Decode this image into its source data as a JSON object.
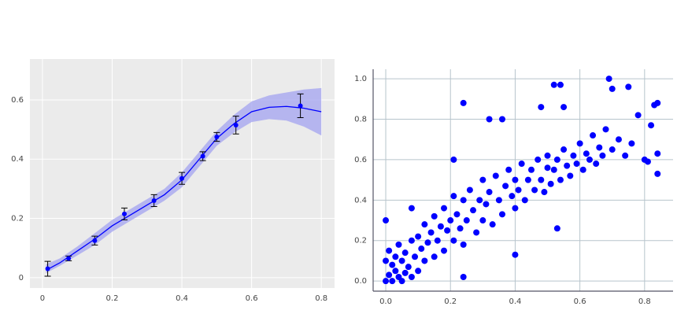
{
  "chart_data": [
    {
      "type": "errorbar",
      "x": [
        0.015,
        0.075,
        0.15,
        0.235,
        0.32,
        0.4,
        0.46,
        0.5,
        0.555,
        0.74
      ],
      "values": [
        0.03,
        0.065,
        0.125,
        0.215,
        0.26,
        0.335,
        0.41,
        0.475,
        0.515,
        0.58
      ],
      "errors": [
        0.025,
        0.008,
        0.015,
        0.02,
        0.02,
        0.02,
        0.015,
        0.015,
        0.03,
        0.04
      ],
      "color": "#0000ff",
      "fit": {
        "x": [
          0.01,
          0.05,
          0.1,
          0.15,
          0.2,
          0.25,
          0.3,
          0.35,
          0.4,
          0.45,
          0.5,
          0.55,
          0.6,
          0.65,
          0.7,
          0.75,
          0.8
        ],
        "values": [
          0.025,
          0.05,
          0.09,
          0.13,
          0.175,
          0.21,
          0.245,
          0.28,
          0.33,
          0.4,
          0.47,
          0.52,
          0.56,
          0.575,
          0.578,
          0.572,
          0.56
        ],
        "lower": [
          0.015,
          0.04,
          0.075,
          0.11,
          0.155,
          0.19,
          0.225,
          0.26,
          0.305,
          0.375,
          0.445,
          0.49,
          0.525,
          0.535,
          0.53,
          0.51,
          0.48
        ],
        "upper": [
          0.045,
          0.065,
          0.105,
          0.15,
          0.195,
          0.23,
          0.265,
          0.3,
          0.355,
          0.425,
          0.495,
          0.55,
          0.595,
          0.615,
          0.625,
          0.635,
          0.64
        ],
        "color": "#0000ff",
        "band_color": "#a8a8f0"
      },
      "xlim": [
        -0.036,
        0.838
      ],
      "ylim": [
        -0.035,
        0.738
      ],
      "xticks": [
        0,
        0.2,
        0.4,
        0.6,
        0.8
      ],
      "yticks": [
        0,
        0.2,
        0.4,
        0.6
      ],
      "grid": true,
      "background": "#ebebeb"
    },
    {
      "type": "scatter",
      "x": [
        0.0,
        0.0,
        0.01,
        0.01,
        0.02,
        0.02,
        0.03,
        0.03,
        0.04,
        0.04,
        0.05,
        0.05,
        0.06,
        0.06,
        0.07,
        0.08,
        0.08,
        0.09,
        0.1,
        0.1,
        0.11,
        0.12,
        0.12,
        0.13,
        0.14,
        0.15,
        0.15,
        0.16,
        0.17,
        0.18,
        0.18,
        0.19,
        0.2,
        0.21,
        0.21,
        0.22,
        0.23,
        0.24,
        0.24,
        0.25,
        0.26,
        0.27,
        0.28,
        0.29,
        0.3,
        0.3,
        0.31,
        0.32,
        0.33,
        0.34,
        0.35,
        0.36,
        0.37,
        0.38,
        0.39,
        0.4,
        0.4,
        0.41,
        0.42,
        0.43,
        0.44,
        0.45,
        0.46,
        0.47,
        0.48,
        0.49,
        0.5,
        0.5,
        0.51,
        0.52,
        0.53,
        0.54,
        0.55,
        0.56,
        0.57,
        0.58,
        0.59,
        0.6,
        0.61,
        0.62,
        0.63,
        0.64,
        0.65,
        0.66,
        0.67,
        0.68,
        0.7,
        0.72,
        0.74,
        0.76,
        0.78,
        0.8,
        0.82,
        0.84,
        0.24,
        0.32,
        0.36,
        0.0,
        0.21,
        0.52,
        0.54,
        0.69,
        0.7,
        0.75,
        0.83,
        0.84,
        0.84,
        0.81,
        0.24,
        0.53,
        0.4,
        0.08,
        0.55,
        0.48
      ],
      "values": [
        0.0,
        0.1,
        0.03,
        0.15,
        0.0,
        0.08,
        0.05,
        0.12,
        0.02,
        0.18,
        0.0,
        0.1,
        0.04,
        0.14,
        0.07,
        0.02,
        0.2,
        0.12,
        0.05,
        0.22,
        0.16,
        0.1,
        0.28,
        0.19,
        0.24,
        0.12,
        0.32,
        0.2,
        0.27,
        0.15,
        0.36,
        0.25,
        0.3,
        0.2,
        0.42,
        0.33,
        0.26,
        0.4,
        0.18,
        0.3,
        0.45,
        0.35,
        0.24,
        0.4,
        0.5,
        0.3,
        0.38,
        0.44,
        0.28,
        0.52,
        0.4,
        0.33,
        0.47,
        0.55,
        0.42,
        0.36,
        0.5,
        0.45,
        0.58,
        0.4,
        0.5,
        0.55,
        0.45,
        0.6,
        0.5,
        0.44,
        0.56,
        0.62,
        0.48,
        0.55,
        0.6,
        0.5,
        0.65,
        0.57,
        0.52,
        0.62,
        0.58,
        0.68,
        0.55,
        0.63,
        0.6,
        0.72,
        0.58,
        0.66,
        0.62,
        0.75,
        0.65,
        0.7,
        0.62,
        0.68,
        0.82,
        0.6,
        0.77,
        0.88,
        0.88,
        0.8,
        0.8,
        0.3,
        0.6,
        0.97,
        0.97,
        1.0,
        0.95,
        0.96,
        0.87,
        0.63,
        0.53,
        0.59,
        0.02,
        0.26,
        0.13,
        0.36,
        0.86,
        0.86
      ],
      "color": "#0000ff",
      "xlim": [
        -0.039,
        0.888
      ],
      "ylim": [
        -0.05,
        1.047
      ],
      "xticks": [
        {
          "value": 0,
          "label": "0.0"
        },
        0.2,
        0.4,
        0.6,
        0.8
      ],
      "yticks": [
        {
          "value": 0,
          "label": "0.0"
        },
        0.2,
        0.4,
        0.6,
        0.8,
        {
          "value": 1,
          "label": "1.0"
        }
      ],
      "grid": true,
      "background": "#ffffff"
    }
  ]
}
